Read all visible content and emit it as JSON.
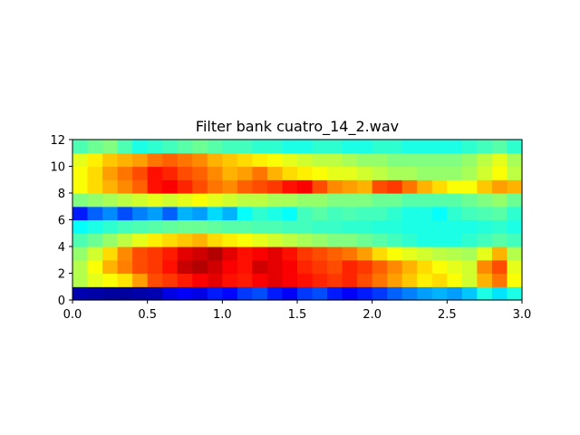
{
  "chart_data": {
    "type": "heatmap",
    "title": "Filter bank cuatro_14_2.wav",
    "xlabel": "",
    "ylabel": "",
    "xlim": [
      0.0,
      3.0
    ],
    "ylim": [
      0,
      12
    ],
    "x_ticks": [
      "0.0",
      "0.5",
      "1.0",
      "1.5",
      "2.0",
      "2.5",
      "3.0"
    ],
    "y_ticks": [
      "0",
      "2",
      "4",
      "6",
      "8",
      "10",
      "12"
    ],
    "colormap": "jet",
    "grid": false,
    "legend": "none",
    "n_filters": 12,
    "n_frames": 30,
    "values": [
      [
        0.05,
        0.04,
        0.03,
        0.03,
        0.04,
        0.05,
        0.1,
        0.12,
        0.1,
        0.15,
        0.13,
        0.18,
        0.2,
        0.15,
        0.12,
        0.18,
        0.2,
        0.15,
        0.12,
        0.15,
        0.18,
        0.22,
        0.25,
        0.28,
        0.3,
        0.28,
        0.32,
        0.4,
        0.35,
        0.4
      ],
      [
        0.55,
        0.6,
        0.62,
        0.65,
        0.72,
        0.8,
        0.82,
        0.85,
        0.88,
        0.9,
        0.86,
        0.85,
        0.88,
        0.9,
        0.88,
        0.86,
        0.84,
        0.82,
        0.84,
        0.8,
        0.76,
        0.72,
        0.68,
        0.64,
        0.66,
        0.62,
        0.58,
        0.7,
        0.76,
        0.62
      ],
      [
        0.55,
        0.62,
        0.7,
        0.75,
        0.8,
        0.82,
        0.86,
        0.93,
        0.95,
        0.92,
        0.88,
        0.86,
        0.92,
        0.9,
        0.88,
        0.84,
        0.82,
        0.8,
        0.84,
        0.82,
        0.78,
        0.74,
        0.7,
        0.66,
        0.62,
        0.6,
        0.58,
        0.74,
        0.8,
        0.6
      ],
      [
        0.52,
        0.58,
        0.66,
        0.74,
        0.8,
        0.82,
        0.85,
        0.9,
        0.92,
        0.95,
        0.9,
        0.86,
        0.88,
        0.9,
        0.86,
        0.82,
        0.8,
        0.78,
        0.76,
        0.72,
        0.66,
        0.62,
        0.6,
        0.58,
        0.56,
        0.55,
        0.54,
        0.6,
        0.7,
        0.55
      ],
      [
        0.45,
        0.48,
        0.52,
        0.56,
        0.6,
        0.64,
        0.66,
        0.68,
        0.7,
        0.66,
        0.64,
        0.62,
        0.6,
        0.58,
        0.56,
        0.54,
        0.52,
        0.5,
        0.5,
        0.48,
        0.46,
        0.44,
        0.42,
        0.4,
        0.4,
        0.4,
        0.42,
        0.44,
        0.46,
        0.44
      ],
      [
        0.38,
        0.4,
        0.42,
        0.44,
        0.45,
        0.46,
        0.47,
        0.48,
        0.48,
        0.47,
        0.46,
        0.46,
        0.45,
        0.45,
        0.44,
        0.44,
        0.43,
        0.43,
        0.42,
        0.42,
        0.41,
        0.41,
        0.4,
        0.4,
        0.4,
        0.4,
        0.4,
        0.41,
        0.42,
        0.4
      ],
      [
        0.15,
        0.22,
        0.26,
        0.2,
        0.25,
        0.28,
        0.22,
        0.3,
        0.28,
        0.34,
        0.3,
        0.38,
        0.42,
        0.4,
        0.38,
        0.44,
        0.46,
        0.44,
        0.45,
        0.44,
        0.44,
        0.42,
        0.4,
        0.4,
        0.38,
        0.42,
        0.44,
        0.45,
        0.46,
        0.42
      ],
      [
        0.5,
        0.52,
        0.54,
        0.56,
        0.58,
        0.6,
        0.58,
        0.6,
        0.62,
        0.6,
        0.58,
        0.56,
        0.56,
        0.54,
        0.54,
        0.52,
        0.52,
        0.5,
        0.5,
        0.5,
        0.48,
        0.48,
        0.46,
        0.46,
        0.46,
        0.46,
        0.48,
        0.5,
        0.52,
        0.48
      ],
      [
        0.62,
        0.66,
        0.7,
        0.74,
        0.78,
        0.86,
        0.88,
        0.84,
        0.8,
        0.76,
        0.74,
        0.78,
        0.8,
        0.82,
        0.86,
        0.88,
        0.8,
        0.74,
        0.72,
        0.7,
        0.8,
        0.82,
        0.76,
        0.7,
        0.66,
        0.62,
        0.62,
        0.68,
        0.72,
        0.7
      ],
      [
        0.62,
        0.66,
        0.72,
        0.76,
        0.8,
        0.86,
        0.84,
        0.8,
        0.78,
        0.74,
        0.7,
        0.72,
        0.76,
        0.7,
        0.66,
        0.64,
        0.62,
        0.6,
        0.6,
        0.58,
        0.56,
        0.54,
        0.54,
        0.52,
        0.52,
        0.52,
        0.54,
        0.58,
        0.62,
        0.56
      ],
      [
        0.6,
        0.64,
        0.68,
        0.7,
        0.72,
        0.76,
        0.78,
        0.76,
        0.74,
        0.7,
        0.68,
        0.66,
        0.64,
        0.62,
        0.6,
        0.58,
        0.56,
        0.56,
        0.54,
        0.52,
        0.52,
        0.5,
        0.5,
        0.5,
        0.5,
        0.5,
        0.52,
        0.56,
        0.6,
        0.54
      ],
      [
        0.45,
        0.48,
        0.5,
        0.45,
        0.4,
        0.42,
        0.44,
        0.46,
        0.48,
        0.46,
        0.44,
        0.44,
        0.42,
        0.42,
        0.4,
        0.4,
        0.42,
        0.42,
        0.4,
        0.4,
        0.42,
        0.42,
        0.4,
        0.4,
        0.4,
        0.4,
        0.42,
        0.44,
        0.46,
        0.42
      ]
    ]
  }
}
